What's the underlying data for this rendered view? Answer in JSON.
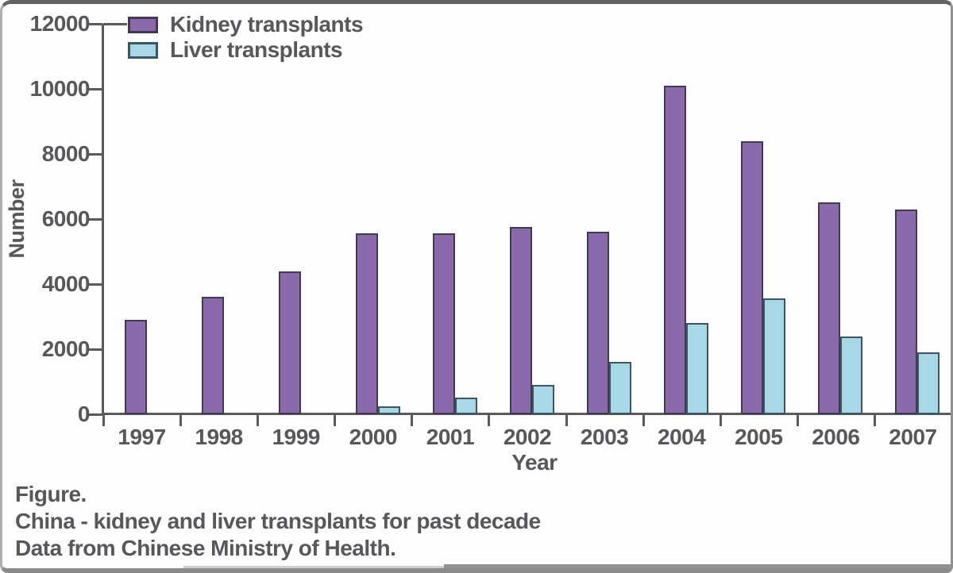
{
  "chart_data": {
    "type": "bar",
    "title": "",
    "categories": [
      "1997",
      "1998",
      "1999",
      "2000",
      "2001",
      "2002",
      "2003",
      "2004",
      "2005",
      "2006",
      "2007"
    ],
    "series": [
      {
        "name": "Kidney transplants",
        "color": "#8a6aac",
        "border_color": "#423a4d",
        "values": [
          2900,
          3600,
          4400,
          5550,
          5550,
          5750,
          5600,
          10100,
          8400,
          6500,
          6300
        ]
      },
      {
        "name": "Liver transplants",
        "color": "#a7d8e8",
        "border_color": "#3c5660",
        "values": [
          0,
          0,
          0,
          250,
          500,
          900,
          1600,
          2800,
          3550,
          2400,
          1900
        ]
      }
    ],
    "xlabel": "Year",
    "ylabel": "Number",
    "ylim": [
      0,
      12000
    ],
    "ytick_step": 2000,
    "ytick_labels": [
      "0",
      "2000",
      "4000",
      "6000",
      "8000",
      "10000",
      "12000"
    ],
    "grid": false,
    "legend_position": "top-left",
    "axis_color": "#595a5e",
    "text_color": "#57585c"
  },
  "caption": {
    "line1": "Figure.",
    "line2": "China - kidney and liver transplants for past decade",
    "line3": "Data from Chinese Ministry of Health."
  }
}
